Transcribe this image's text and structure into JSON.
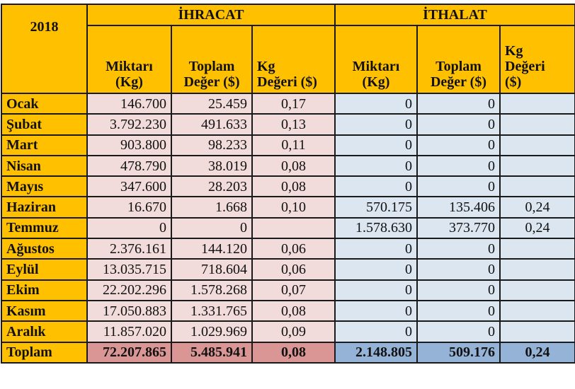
{
  "year": "2018",
  "groups": {
    "export": "İHRACAT",
    "import": "İTHALAT"
  },
  "export_headers": {
    "qty": [
      "Miktarı",
      "(Kg)"
    ],
    "total": [
      "Toplam",
      "Değer ($)"
    ],
    "kg": [
      "Kg",
      "Değeri ($)"
    ]
  },
  "import_headers": {
    "qty": [
      "Miktarı",
      "(Kg)"
    ],
    "total": [
      "Toplam",
      "Değer ($)"
    ],
    "kg": [
      "Kg",
      "Değeri",
      "($)"
    ]
  },
  "colors": {
    "header": "#FFC000",
    "export": "#F2DCDB",
    "import": "#DCE6F1",
    "export_total": "#DA9694",
    "import_total": "#95B3D7"
  },
  "rows": [
    {
      "month": "Ocak",
      "ex_qty": "146.700",
      "ex_val": "25.459",
      "ex_kg": "0,17",
      "im_qty": "0",
      "im_val": "0",
      "im_kg": ""
    },
    {
      "month": "Şubat",
      "ex_qty": "3.792.230",
      "ex_val": "491.633",
      "ex_kg": "0,13",
      "im_qty": "0",
      "im_val": "0",
      "im_kg": ""
    },
    {
      "month": "Mart",
      "ex_qty": "903.800",
      "ex_val": "98.233",
      "ex_kg": "0,11",
      "im_qty": "0",
      "im_val": "0",
      "im_kg": ""
    },
    {
      "month": "Nisan",
      "ex_qty": "478.790",
      "ex_val": "38.019",
      "ex_kg": "0,08",
      "im_qty": "0",
      "im_val": "0",
      "im_kg": ""
    },
    {
      "month": "Mayıs",
      "ex_qty": "347.600",
      "ex_val": "28.203",
      "ex_kg": "0,08",
      "im_qty": "0",
      "im_val": "0",
      "im_kg": ""
    },
    {
      "month": "Haziran",
      "ex_qty": "16.670",
      "ex_val": "1.668",
      "ex_kg": "0,10",
      "im_qty": "570.175",
      "im_val": "135.406",
      "im_kg": "0,24"
    },
    {
      "month": "Temmuz",
      "ex_qty": "0",
      "ex_val": "0",
      "ex_kg": "",
      "im_qty": "1.578.630",
      "im_val": "373.770",
      "im_kg": "0,24"
    },
    {
      "month": "Ağustos",
      "ex_qty": "2.376.161",
      "ex_val": "144.120",
      "ex_kg": "0,06",
      "im_qty": "0",
      "im_val": "0",
      "im_kg": ""
    },
    {
      "month": "Eylül",
      "ex_qty": "13.035.715",
      "ex_val": "718.604",
      "ex_kg": "0,06",
      "im_qty": "0",
      "im_val": "0",
      "im_kg": ""
    },
    {
      "month": "Ekim",
      "ex_qty": "22.202.296",
      "ex_val": "1.578.268",
      "ex_kg": "0,07",
      "im_qty": "0",
      "im_val": "0",
      "im_kg": ""
    },
    {
      "month": "Kasım",
      "ex_qty": "17.050.883",
      "ex_val": "1.331.765",
      "ex_kg": "0,08",
      "im_qty": "0",
      "im_val": "0",
      "im_kg": ""
    },
    {
      "month": "Aralık",
      "ex_qty": "11.857.020",
      "ex_val": "1.029.969",
      "ex_kg": "0,09",
      "im_qty": "0",
      "im_val": "0",
      "im_kg": ""
    }
  ],
  "total": {
    "month": "Toplam",
    "ex_qty": "72.207.865",
    "ex_val": "5.485.941",
    "ex_kg": "0,08",
    "im_qty": "2.148.805",
    "im_val": "509.176",
    "im_kg": "0,24"
  }
}
